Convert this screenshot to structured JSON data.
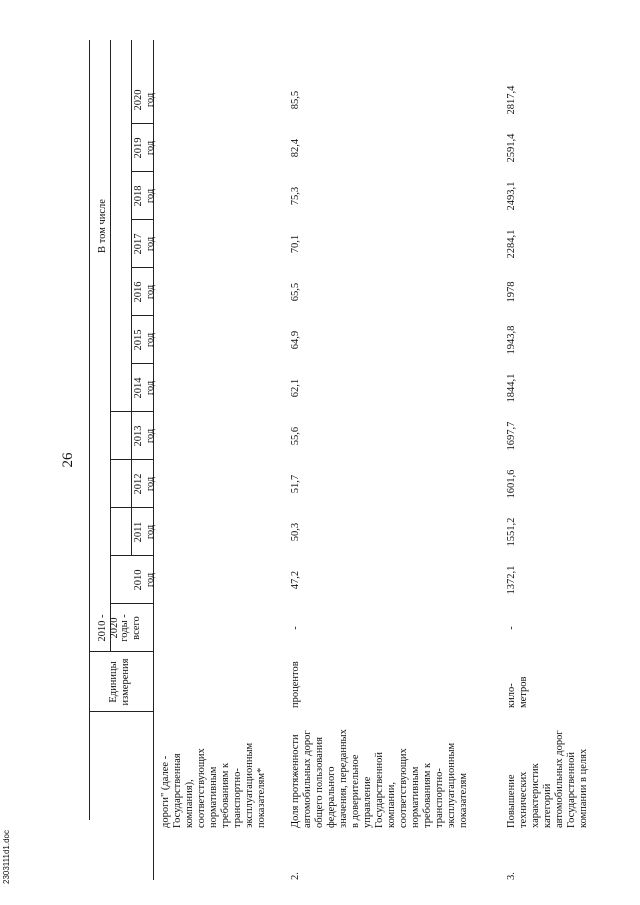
{
  "page_number": "26",
  "footer_file": "2303111d1.doc",
  "header": {
    "units": "Единицы\nизмерения",
    "period": "2010 - 2020",
    "total": "годы -\nвсего",
    "in_that_number": "В том числе",
    "years": [
      "2010\nгод",
      "2011\nгод",
      "2012\nгод",
      "2013\nгод",
      "2014\nгод",
      "2015\nгод",
      "2016\nгод",
      "2017\nгод",
      "2018\nгод",
      "2019\nгод",
      "2020\nгод"
    ]
  },
  "rows": [
    {
      "no": "",
      "name": "дороги\" (далее -\nГосударственная\nкомпания),\nсоответствующих\nнормативным\nтребованиям к\nтранспортно-\nэксплуатационным\nпоказателям*",
      "unit": "",
      "total": "",
      "values": [
        "",
        "",
        "",
        "",
        "",
        "",
        "",
        "",
        "",
        "",
        ""
      ]
    },
    {
      "no": "2.",
      "name": "Доля протяженности\nавтомобильных дорог\nобщего пользования\nфедерального\nзначения, переданных\nв доверительное\nуправление\nГосударственной\nкомпании,\nсоответствующих\nнормативным\nтребованиям к\nтранспортно-\nэксплуатационным\nпоказателям",
      "unit": "процентов",
      "total": "-",
      "values": [
        "47,2",
        "50,3",
        "51,7",
        "55,6",
        "62,1",
        "64,9",
        "65,5",
        "70,1",
        "75,3",
        "82,4",
        "85,5"
      ]
    },
    {
      "no": "3.",
      "name": "Повышение\nтехнических\nхарактеристик\nкатегорий\nавтомобильных дорог\nГосударственной\nкомпании  в целях",
      "unit": "кило-\nметров",
      "total": "-",
      "values": [
        "1372,1",
        "1551,2",
        "1601,6",
        "1697,7",
        "1844,1",
        "1943,8",
        "1978",
        "2284,1",
        "2493,1",
        "2591,4",
        "2817,4"
      ]
    }
  ]
}
